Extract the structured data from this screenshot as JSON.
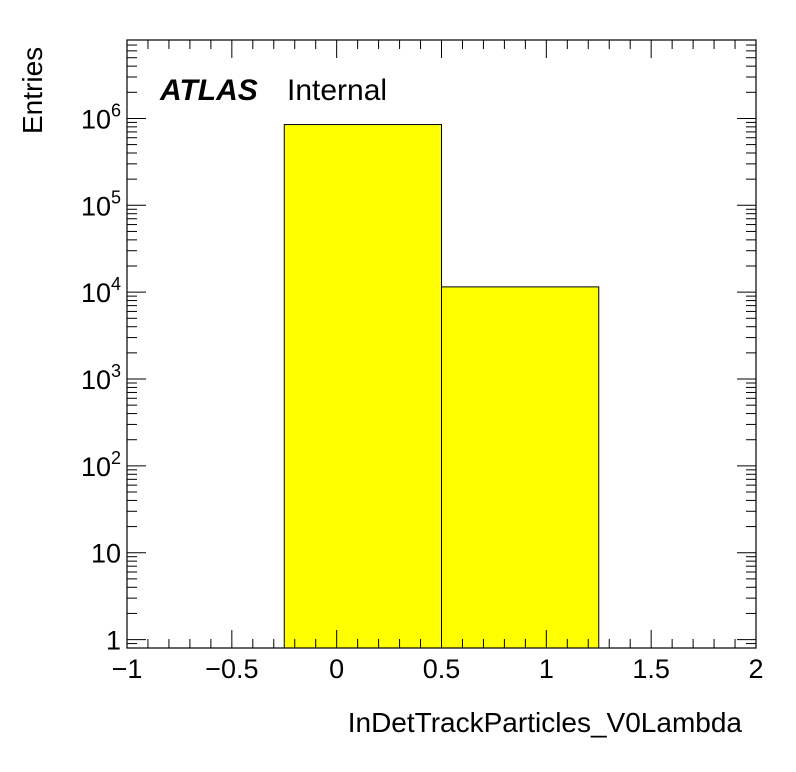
{
  "chart_data": {
    "type": "bar",
    "histogram": true,
    "bins": [
      {
        "x_low": -0.25,
        "x_high": 0.5,
        "value": 850000
      },
      {
        "x_low": 0.5,
        "x_high": 1.25,
        "value": 11500
      }
    ],
    "xlabel": "InDetTrackParticles_V0Lambda",
    "ylabel": "Entries",
    "xlim": [
      -1,
      2
    ],
    "ylim": [
      0.8,
      8000000
    ],
    "y_scale": "log",
    "x_ticks": [
      "−1",
      "−0.5",
      "0",
      "0.5",
      "1",
      "1.5",
      "2"
    ],
    "x_tick_values": [
      -1,
      -0.5,
      0,
      0.5,
      1,
      1.5,
      2
    ],
    "y_ticks": [
      {
        "value": 1,
        "base": "1",
        "exp": ""
      },
      {
        "value": 10,
        "base": "10",
        "exp": ""
      },
      {
        "value": 100,
        "base": "10",
        "exp": "2"
      },
      {
        "value": 1000,
        "base": "10",
        "exp": "3"
      },
      {
        "value": 10000,
        "base": "10",
        "exp": "4"
      },
      {
        "value": 100000,
        "base": "10",
        "exp": "5"
      },
      {
        "value": 1000000,
        "base": "10",
        "exp": "6"
      }
    ],
    "fill_color": "#ffff00",
    "line_color": "#000000",
    "label_main": "ATLAS",
    "label_sub": "Internal",
    "grid": false
  }
}
